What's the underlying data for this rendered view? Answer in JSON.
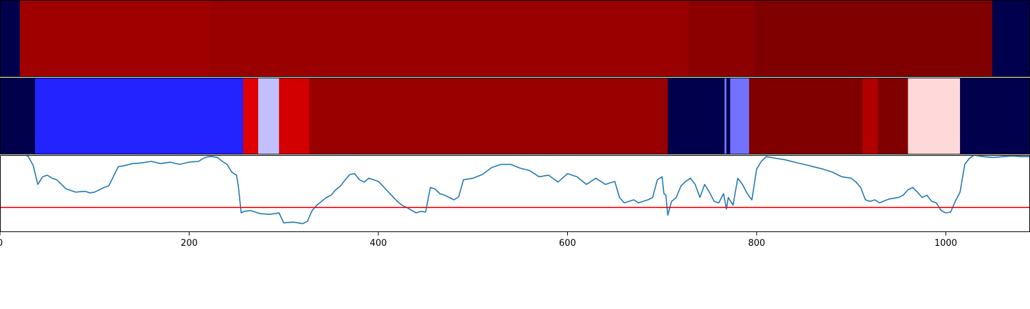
{
  "chart_data": [
    {
      "type": "heatmap",
      "panel": "top",
      "segments": [
        {
          "start": 0,
          "end": 21,
          "color": "#00004c"
        },
        {
          "start": 21,
          "end": 221,
          "color": "#a10000"
        },
        {
          "start": 221,
          "end": 728,
          "color": "#990000"
        },
        {
          "start": 728,
          "end": 798,
          "color": "#8c0000"
        },
        {
          "start": 798,
          "end": 1049,
          "color": "#800000"
        },
        {
          "start": 1049,
          "end": 1089,
          "color": "#00004c"
        }
      ]
    },
    {
      "type": "heatmap",
      "panel": "middle",
      "segments": [
        {
          "start": 0,
          "end": 37,
          "color": "#00004c"
        },
        {
          "start": 37,
          "end": 257,
          "color": "#2323ff"
        },
        {
          "start": 257,
          "end": 273,
          "color": "#e10000"
        },
        {
          "start": 273,
          "end": 295,
          "color": "#c0c0ff"
        },
        {
          "start": 295,
          "end": 327,
          "color": "#d30000"
        },
        {
          "start": 327,
          "end": 706,
          "color": "#990000"
        },
        {
          "start": 706,
          "end": 766,
          "color": "#00004c"
        },
        {
          "start": 766,
          "end": 768,
          "color": "#7474ff"
        },
        {
          "start": 768,
          "end": 772,
          "color": "#00004c"
        },
        {
          "start": 772,
          "end": 792,
          "color": "#7272ff"
        },
        {
          "start": 792,
          "end": 912,
          "color": "#800000"
        },
        {
          "start": 912,
          "end": 928,
          "color": "#b00000"
        },
        {
          "start": 928,
          "end": 960,
          "color": "#800000"
        },
        {
          "start": 960,
          "end": 1015,
          "color": "#ffd9d9"
        },
        {
          "start": 1015,
          "end": 1089,
          "color": "#00004c"
        }
      ]
    },
    {
      "type": "line",
      "panel": "bottom",
      "line_color": "#1f77b4",
      "threshold": 0.32,
      "threshold_color": "#ff0000",
      "ylim": [
        0,
        1
      ],
      "xlim": [
        0,
        1089
      ],
      "xticks": [
        0,
        200,
        400,
        600,
        800,
        1000
      ],
      "x": [
        0,
        25,
        30,
        35,
        40,
        45,
        50,
        55,
        60,
        70,
        80,
        90,
        95,
        100,
        110,
        115,
        125,
        130,
        140,
        150,
        160,
        170,
        180,
        190,
        200,
        210,
        215,
        220,
        225,
        230,
        235,
        240,
        245,
        250,
        252,
        255,
        258,
        265,
        275,
        285,
        295,
        300,
        310,
        320,
        325,
        330,
        335,
        340,
        345,
        350,
        355,
        360,
        365,
        370,
        375,
        380,
        385,
        390,
        400,
        410,
        420,
        425,
        430,
        440,
        445,
        450,
        455,
        460,
        465,
        470,
        475,
        480,
        485,
        490,
        500,
        510,
        520,
        530,
        540,
        550,
        560,
        570,
        580,
        590,
        600,
        610,
        620,
        630,
        640,
        650,
        655,
        660,
        665,
        670,
        675,
        680,
        685,
        690,
        695,
        700,
        702,
        704,
        706,
        710,
        715,
        720,
        725,
        730,
        735,
        740,
        745,
        750,
        755,
        760,
        765,
        768,
        770,
        775,
        780,
        785,
        790,
        795,
        800,
        805,
        810,
        820,
        830,
        840,
        850,
        860,
        870,
        880,
        890,
        900,
        905,
        910,
        915,
        920,
        925,
        930,
        940,
        950,
        955,
        960,
        965,
        970,
        975,
        980,
        985,
        990,
        995,
        1000,
        1005,
        1010,
        1015,
        1020,
        1025,
        1030,
        1040,
        1050,
        1060,
        1070,
        1080,
        1089
      ],
      "y": [
        1.02,
        1.02,
        0.98,
        0.87,
        0.62,
        0.72,
        0.74,
        0.7,
        0.68,
        0.56,
        0.52,
        0.53,
        0.51,
        0.52,
        0.58,
        0.6,
        0.85,
        0.86,
        0.89,
        0.9,
        0.92,
        0.89,
        0.91,
        0.88,
        0.91,
        0.92,
        0.96,
        0.98,
        0.98,
        0.97,
        0.92,
        0.88,
        0.78,
        0.74,
        0.6,
        0.25,
        0.27,
        0.28,
        0.24,
        0.23,
        0.25,
        0.12,
        0.13,
        0.11,
        0.14,
        0.28,
        0.35,
        0.4,
        0.45,
        0.48,
        0.55,
        0.6,
        0.68,
        0.75,
        0.76,
        0.68,
        0.65,
        0.7,
        0.66,
        0.53,
        0.4,
        0.35,
        0.32,
        0.25,
        0.27,
        0.26,
        0.58,
        0.56,
        0.5,
        0.48,
        0.45,
        0.42,
        0.46,
        0.68,
        0.7,
        0.75,
        0.84,
        0.88,
        0.88,
        0.83,
        0.8,
        0.72,
        0.74,
        0.65,
        0.76,
        0.72,
        0.62,
        0.7,
        0.62,
        0.66,
        0.45,
        0.38,
        0.4,
        0.42,
        0.38,
        0.4,
        0.42,
        0.45,
        0.68,
        0.72,
        0.5,
        0.48,
        0.22,
        0.4,
        0.45,
        0.6,
        0.66,
        0.7,
        0.62,
        0.45,
        0.62,
        0.52,
        0.4,
        0.38,
        0.5,
        0.3,
        0.45,
        0.35,
        0.7,
        0.62,
        0.5,
        0.42,
        0.82,
        0.92,
        0.98,
        0.96,
        0.94,
        0.91,
        0.88,
        0.85,
        0.82,
        0.78,
        0.72,
        0.7,
        0.65,
        0.58,
        0.42,
        0.4,
        0.42,
        0.38,
        0.43,
        0.45,
        0.48,
        0.55,
        0.58,
        0.52,
        0.45,
        0.48,
        0.4,
        0.38,
        0.28,
        0.25,
        0.26,
        0.4,
        0.52,
        0.88,
        0.96,
        1.0,
        0.98,
        0.97,
        0.98,
        0.99,
        0.98,
        0.98
      ]
    }
  ]
}
